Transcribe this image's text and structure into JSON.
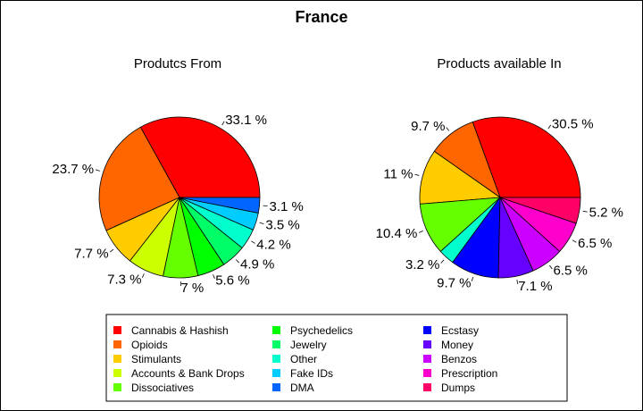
{
  "window": {
    "title": "France"
  },
  "legend": {
    "items": [
      {
        "label": "Cannabis & Hashish",
        "color": "#ff0000"
      },
      {
        "label": "Opioids",
        "color": "#ff6600"
      },
      {
        "label": "Stimulants",
        "color": "#ffcc00"
      },
      {
        "label": "Accounts & Bank Drops",
        "color": "#ccff00"
      },
      {
        "label": "Dissociatives",
        "color": "#66ff00"
      },
      {
        "label": "Psychedelics",
        "color": "#00ff00"
      },
      {
        "label": "Jewelry",
        "color": "#00ff66"
      },
      {
        "label": "Other",
        "color": "#00ffcc"
      },
      {
        "label": "Fake IDs",
        "color": "#00ccff"
      },
      {
        "label": "DMA",
        "color": "#0066ff"
      },
      {
        "label": "Ecstasy",
        "color": "#0000ff"
      },
      {
        "label": "Money",
        "color": "#6600ff"
      },
      {
        "label": "Benzos",
        "color": "#cc00ff"
      },
      {
        "label": "Prescription",
        "color": "#ff00cc"
      },
      {
        "label": "Dumps",
        "color": "#ff0066"
      }
    ]
  },
  "chart_data": [
    {
      "type": "pie",
      "title": "Produtcs From",
      "slices": [
        {
          "category": "Cannabis & Hashish",
          "value": 33.1,
          "label": "33.1 %"
        },
        {
          "category": "Opioids",
          "value": 23.7,
          "label": "23.7 %"
        },
        {
          "category": "Stimulants",
          "value": 7.7,
          "label": "7.7 %"
        },
        {
          "category": "Accounts & Bank Drops",
          "value": 7.3,
          "label": "7.3 %"
        },
        {
          "category": "Dissociatives",
          "value": 7.0,
          "label": "7 %"
        },
        {
          "category": "Psychedelics",
          "value": 5.6,
          "label": "5.6 %"
        },
        {
          "category": "Jewelry",
          "value": 4.9,
          "label": "4.9 %"
        },
        {
          "category": "Other",
          "value": 4.2,
          "label": "4.2 %"
        },
        {
          "category": "Fake IDs",
          "value": 3.5,
          "label": "3.5 %"
        },
        {
          "category": "DMA",
          "value": 3.1,
          "label": "3.1 %"
        }
      ],
      "direction": "counterclockwise",
      "start": "east"
    },
    {
      "type": "pie",
      "title": "Products available In",
      "slices": [
        {
          "category": "Cannabis & Hashish",
          "value": 30.5,
          "label": "30.5 %"
        },
        {
          "category": "Opioids",
          "value": 9.7,
          "label": "9.7 %"
        },
        {
          "category": "Stimulants",
          "value": 11.0,
          "label": "11 %"
        },
        {
          "category": "Dissociatives",
          "value": 10.4,
          "label": "10.4 %"
        },
        {
          "category": "Other",
          "value": 3.2,
          "label": "3.2 %"
        },
        {
          "category": "Ecstasy",
          "value": 9.7,
          "label": "9.7 %"
        },
        {
          "category": "Money",
          "value": 7.1,
          "label": "7.1 %"
        },
        {
          "category": "Benzos",
          "value": 6.5,
          "label": "6.5 %"
        },
        {
          "category": "Prescription",
          "value": 6.5,
          "label": "6.5 %"
        },
        {
          "category": "Dumps",
          "value": 5.2,
          "label": "5.2 %"
        }
      ],
      "direction": "counterclockwise",
      "start": "east"
    }
  ]
}
